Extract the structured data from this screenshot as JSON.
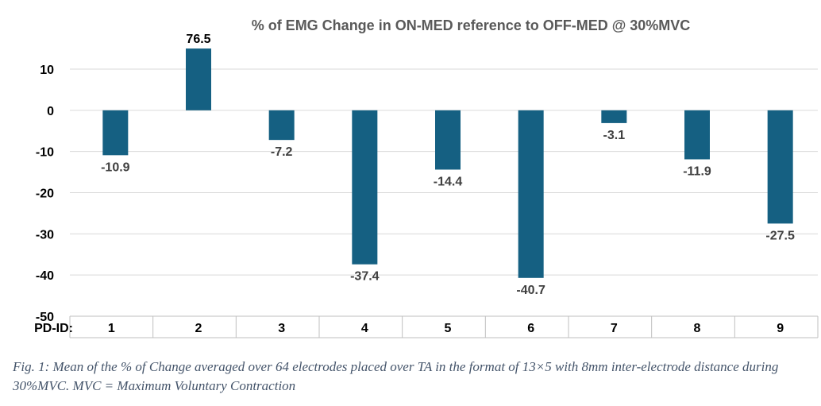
{
  "chart_data": {
    "type": "bar",
    "title": "% of EMG Change in ON-MED reference to OFF-MED @ 30%MVC",
    "x_prefix_label": "PD-ID:",
    "categories": [
      "1",
      "2",
      "3",
      "4",
      "5",
      "6",
      "7",
      "8",
      "9"
    ],
    "values": [
      -10.9,
      76.5,
      -7.2,
      -37.4,
      -14.4,
      -40.7,
      -3.1,
      -11.9,
      -27.5
    ],
    "display_values": [
      -10.9,
      15,
      -7.2,
      -37.4,
      -14.4,
      -40.7,
      -3.1,
      -11.9,
      -27.5
    ],
    "data_labels": [
      "-10.9",
      "76.5",
      "-7.2",
      "-37.4",
      "-14.4",
      "-40.7",
      "-3.1",
      "-11.9",
      "-27.5"
    ],
    "ylim": [
      -50,
      10
    ],
    "yticks": [
      10,
      0,
      -10,
      -20,
      -30,
      -40,
      -50
    ],
    "bar_color": "#156082",
    "grid": true,
    "xlabel": "",
    "ylabel": ""
  },
  "caption": "Fig. 1: Mean of the % of Change averaged over 64 electrodes placed over TA in the format of 13×5 with 8mm inter-electrode distance during 30%MVC. MVC = Maximum Voluntary Contraction"
}
